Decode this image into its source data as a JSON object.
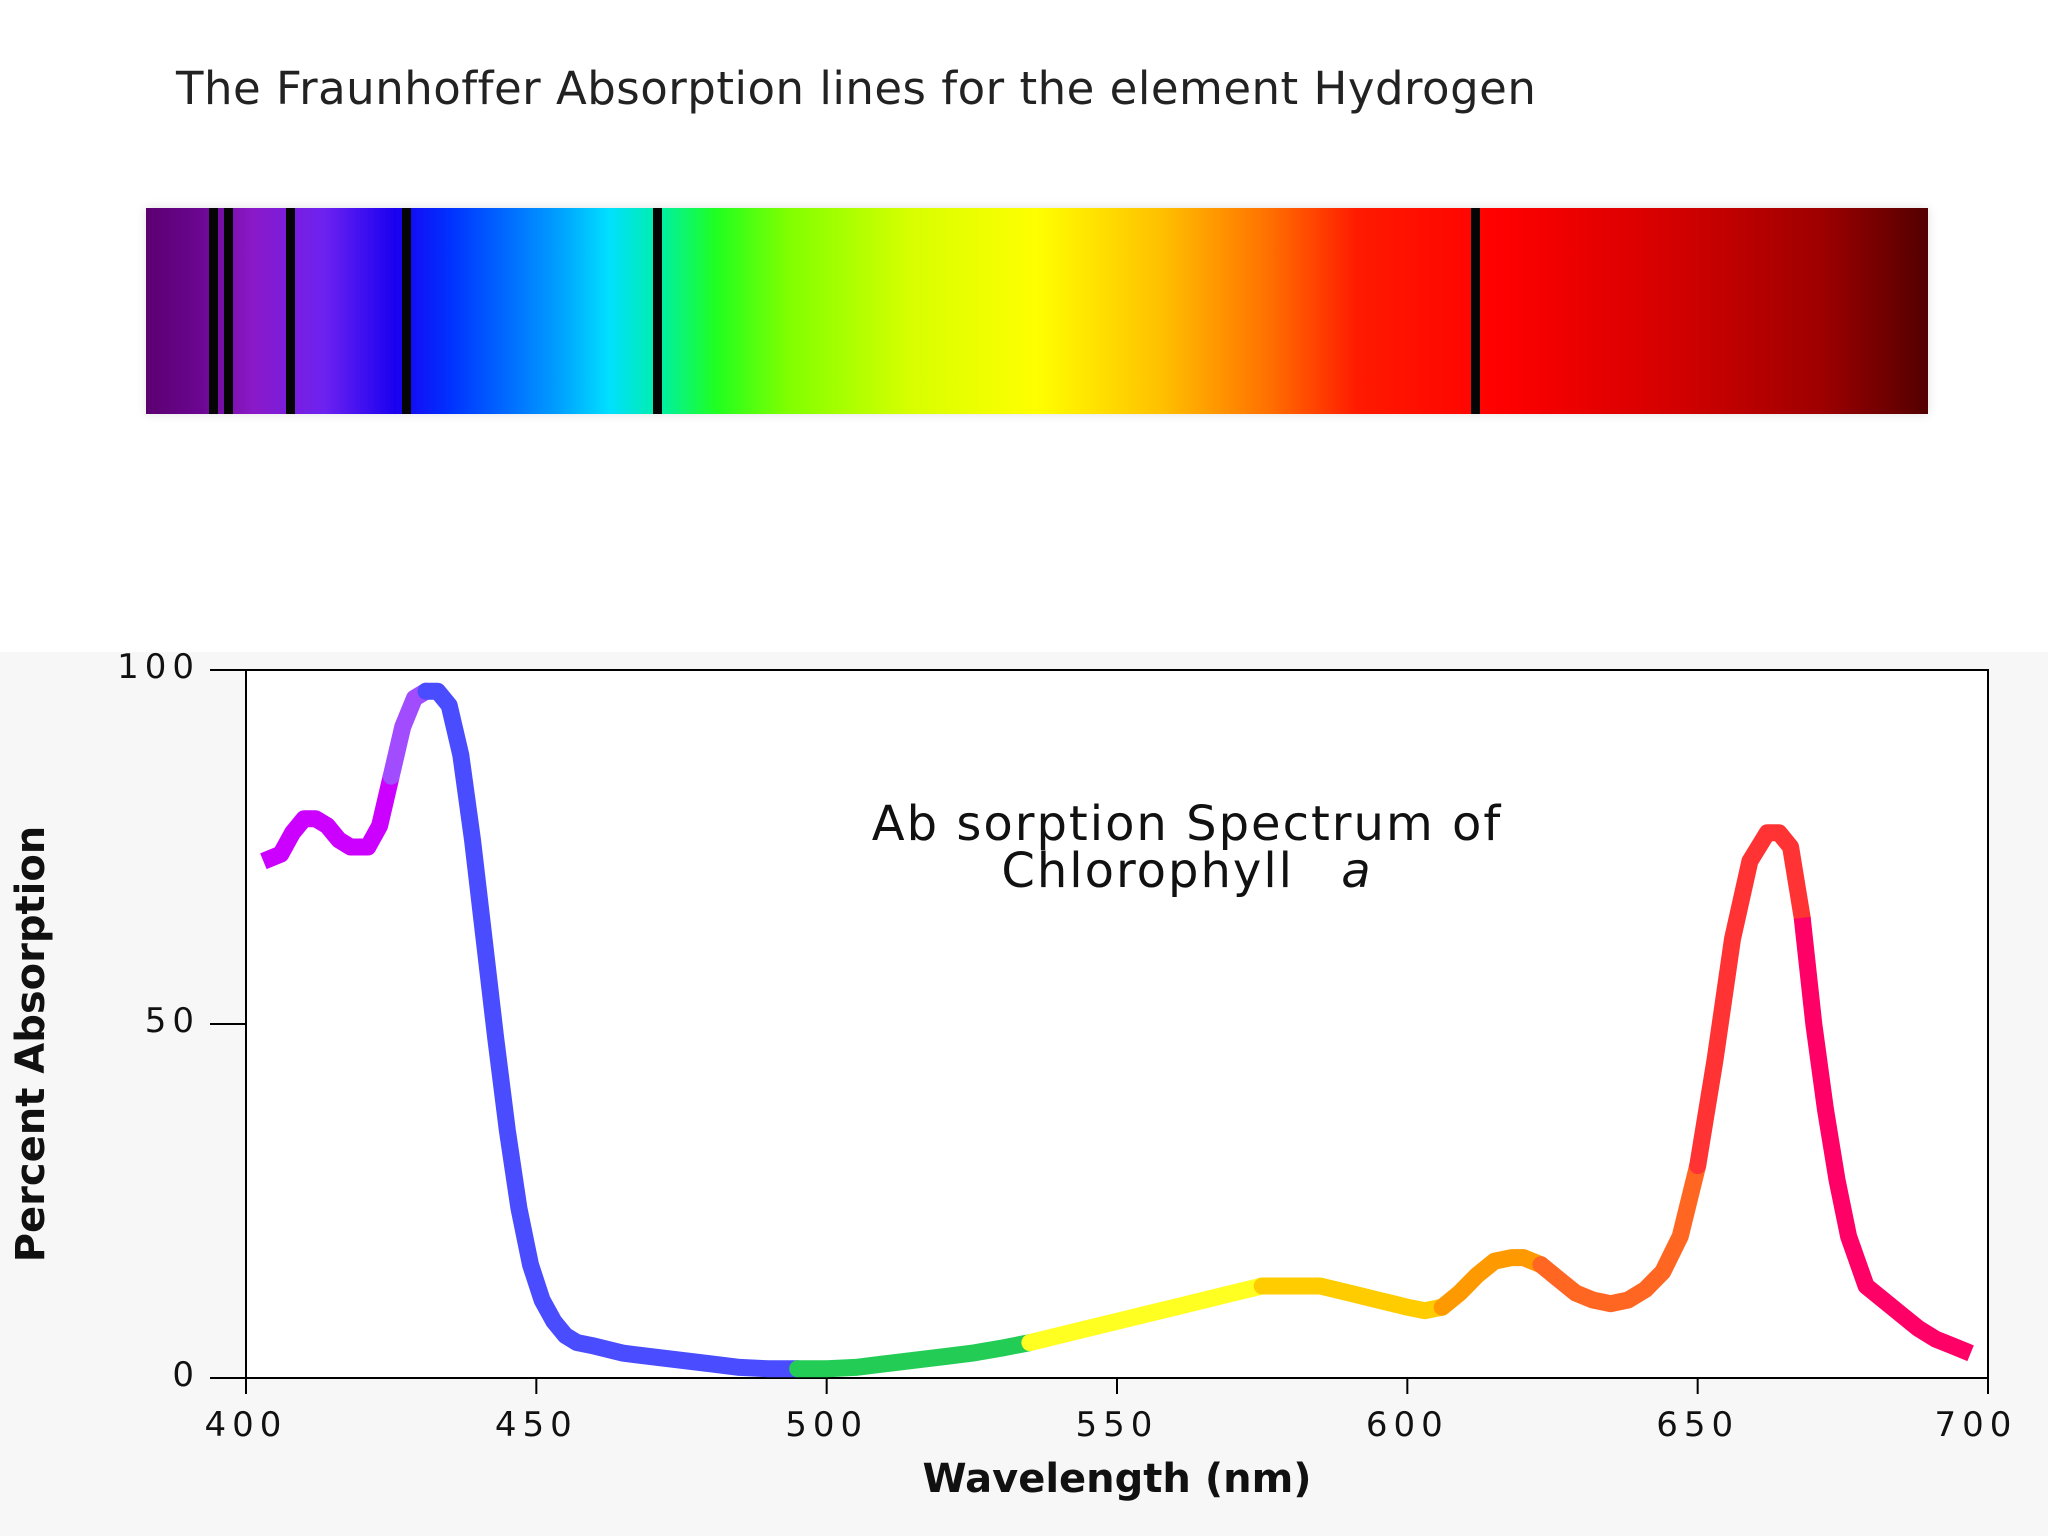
{
  "header": {
    "title": "The Fraunhoffer Absorption lines for the element Hydrogen"
  },
  "spectrum_strip": {
    "range_nm": [
      380,
      750
    ],
    "absorption_lines_nm": [
      394,
      397,
      410,
      434,
      486,
      656
    ]
  },
  "chart_data": {
    "type": "line",
    "title": "Absorption Spectrum of Chlorophyll a",
    "title_line1": "Ab sorption Spectrum of",
    "title_line2_text": "Chlorophyll",
    "title_line2_italic": "a",
    "xlabel": "Wavelength (nm)",
    "ylabel": "Percent Absorption",
    "xlim": [
      400,
      700
    ],
    "ylim": [
      0,
      100
    ],
    "xticks": [
      400,
      450,
      500,
      550,
      600,
      650,
      700
    ],
    "xtick_labels": [
      "400",
      "450",
      "500",
      "550",
      "600",
      "650",
      "700"
    ],
    "yticks": [
      0,
      50,
      100
    ],
    "ytick_labels": [
      "0",
      "50",
      "100"
    ],
    "grid": false,
    "series": [
      {
        "x": [
          403,
          406,
          408,
          410,
          412,
          414,
          416,
          418,
          421,
          423,
          425,
          427,
          429,
          431,
          433,
          435,
          437,
          439,
          441,
          443,
          445,
          447,
          449,
          451,
          453,
          455,
          457,
          460,
          465,
          470,
          475,
          480,
          485,
          490,
          495,
          500,
          505,
          510,
          515,
          520,
          525,
          530,
          535,
          540,
          545,
          550,
          555,
          560,
          565,
          570,
          575,
          580,
          585,
          590,
          595,
          600,
          603,
          606,
          609,
          612,
          615,
          618,
          620,
          623,
          626,
          629,
          632,
          635,
          638,
          641,
          644,
          647,
          650,
          653,
          656,
          659,
          662,
          664,
          666,
          668,
          670,
          672,
          674,
          676,
          679,
          682,
          685,
          688,
          691,
          694,
          697
        ],
        "y": [
          73,
          74,
          77,
          79,
          79,
          78,
          76,
          75,
          75,
          78,
          85,
          92,
          96,
          97,
          97,
          95,
          88,
          76,
          62,
          48,
          35,
          24,
          16,
          11,
          8,
          6,
          5,
          4.5,
          3.5,
          3,
          2.5,
          2,
          1.5,
          1.3,
          1.3,
          1.3,
          1.5,
          2,
          2.5,
          3,
          3.5,
          4.2,
          5,
          6,
          7,
          8,
          9,
          10,
          11,
          12,
          13,
          13,
          13,
          12,
          11,
          10,
          9.5,
          10,
          12,
          14.5,
          16.5,
          17,
          17,
          16,
          14,
          12,
          11,
          10.5,
          11,
          12.5,
          15,
          20,
          30,
          45,
          62,
          73,
          77,
          77,
          75,
          65,
          50,
          38,
          28,
          20,
          13,
          11,
          9,
          7,
          5.5,
          4.5,
          3.5
        ],
        "color_bands": [
          {
            "to": 424,
            "color": "#cc00ff"
          },
          {
            "to": 430,
            "color": "#a24cff"
          },
          {
            "to": 495,
            "color": "#4a4cff"
          },
          {
            "to": 534,
            "color": "#22cc55"
          },
          {
            "to": 575,
            "color": "#ffff22"
          },
          {
            "to": 605,
            "color": "#ffcc00"
          },
          {
            "to": 622,
            "color": "#ff9900"
          },
          {
            "to": 648,
            "color": "#ff6622"
          },
          {
            "to": 668,
            "color": "#ff3333"
          },
          {
            "to": 700,
            "color": "#ff0066"
          }
        ]
      }
    ]
  }
}
